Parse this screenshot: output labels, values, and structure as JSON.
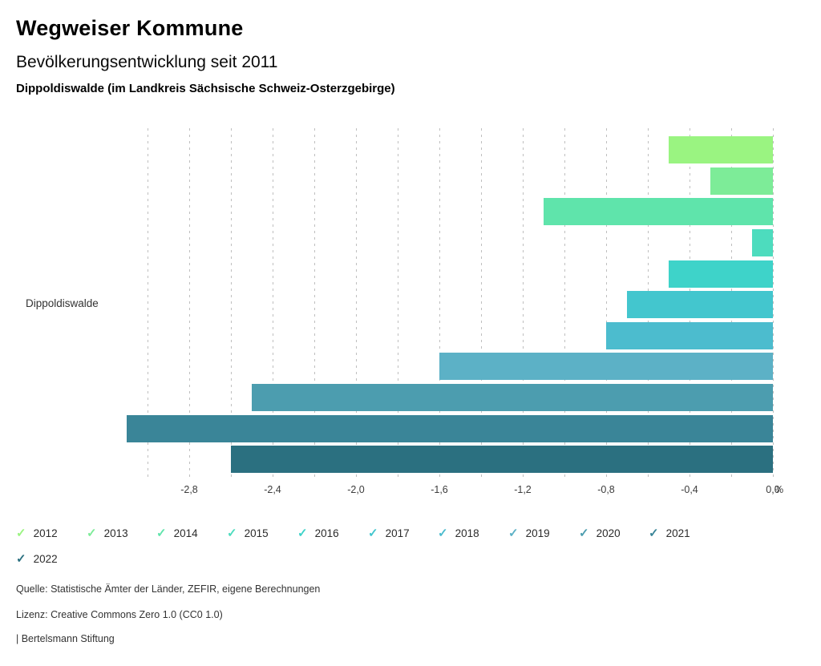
{
  "header": {
    "title": "Wegweiser Kommune",
    "subtitle": "Bevölkerungsentwicklung seit 2011",
    "region_line": "Dippoldiswalde (im Landkreis Sächsische Schweiz-Osterzgebirge)"
  },
  "chart_data": {
    "type": "bar",
    "orientation": "horizontal",
    "title": "Bevölkerungsentwicklung seit 2011",
    "category_label": "Dippoldiswalde",
    "unit": "%",
    "xlim": [
      -3.1,
      0.0
    ],
    "gridline_values": [
      -3.0,
      -2.8,
      -2.6,
      -2.4,
      -2.2,
      -2.0,
      -1.8,
      -1.6,
      -1.4,
      -1.2,
      -1.0,
      -0.8,
      -0.6,
      -0.4,
      -0.2,
      0.0
    ],
    "x_tick_values": [
      -2.8,
      -2.4,
      -2.0,
      -1.6,
      -1.2,
      -0.8,
      -0.4,
      0.0
    ],
    "x_tick_labels": [
      "-2,8",
      "-2,4",
      "-2,0",
      "-1,6",
      "-1,2",
      "-0,8",
      "-0,4",
      "0,0"
    ],
    "series": [
      {
        "year": "2012",
        "value": -0.5,
        "color": "#9AF481"
      },
      {
        "year": "2013",
        "value": -0.3,
        "color": "#7DEC98"
      },
      {
        "year": "2014",
        "value": -1.1,
        "color": "#5FE4AB"
      },
      {
        "year": "2015",
        "value": -0.1,
        "color": "#4DDCBE"
      },
      {
        "year": "2016",
        "value": -0.5,
        "color": "#3ED3C9"
      },
      {
        "year": "2017",
        "value": -0.7,
        "color": "#43C6CE"
      },
      {
        "year": "2018",
        "value": -0.8,
        "color": "#4CBCCE"
      },
      {
        "year": "2019",
        "value": -1.6,
        "color": "#5CB1C6"
      },
      {
        "year": "2020",
        "value": -2.5,
        "color": "#4C9DAF"
      },
      {
        "year": "2021",
        "value": -3.1,
        "color": "#3A8598"
      },
      {
        "year": "2022",
        "value": -2.6,
        "color": "#2B7080"
      }
    ],
    "legend_position": "bottom",
    "grid": true
  },
  "legend": {
    "check_icon": "✓"
  },
  "footer": {
    "source": "Quelle: Statistische Ämter der Länder, ZEFIR, eigene Berechnungen",
    "license": "Lizenz: Creative Commons Zero 1.0 (CC0 1.0)",
    "brand": "| Bertelsmann Stiftung"
  }
}
